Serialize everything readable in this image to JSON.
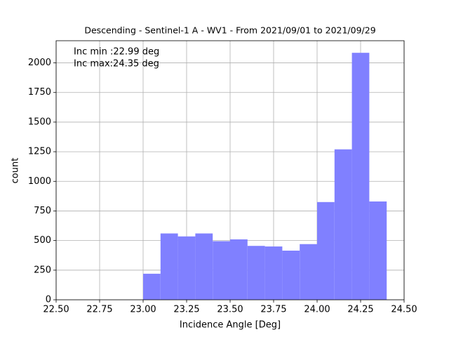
{
  "chart_data": {
    "type": "histogram",
    "title": "Descending - Sentinel-1 A - WV1 - From 2021/09/01 to 2021/09/29",
    "xlabel": "Incidence Angle [Deg]",
    "ylabel": "count",
    "annotations": [
      "Inc min :22.99 deg",
      "Inc max:24.35 deg"
    ],
    "bins": [
      23.0,
      23.1,
      23.2,
      23.3,
      23.4,
      23.5,
      23.6,
      23.7,
      23.8,
      23.9,
      24.0,
      24.1,
      24.2,
      24.3,
      24.4
    ],
    "values": [
      220,
      560,
      535,
      560,
      495,
      510,
      455,
      450,
      415,
      470,
      825,
      1270,
      2085,
      830
    ],
    "color": "#8080ff",
    "xlim": [
      22.5,
      24.5
    ],
    "xticks": [
      {
        "value": 22.5,
        "label": "22.50"
      },
      {
        "value": 22.75,
        "label": "22.75"
      },
      {
        "value": 23.0,
        "label": "23.00"
      },
      {
        "value": 23.25,
        "label": "23.25"
      },
      {
        "value": 23.5,
        "label": "23.50"
      },
      {
        "value": 23.75,
        "label": "23.75"
      },
      {
        "value": 24.0,
        "label": "24.00"
      },
      {
        "value": 24.25,
        "label": "24.25"
      },
      {
        "value": 24.5,
        "label": "24.50"
      }
    ],
    "ylim": [
      0,
      2187
    ],
    "yticks": [
      0,
      250,
      500,
      750,
      1000,
      1250,
      1500,
      1750,
      2000
    ],
    "grid": true
  }
}
